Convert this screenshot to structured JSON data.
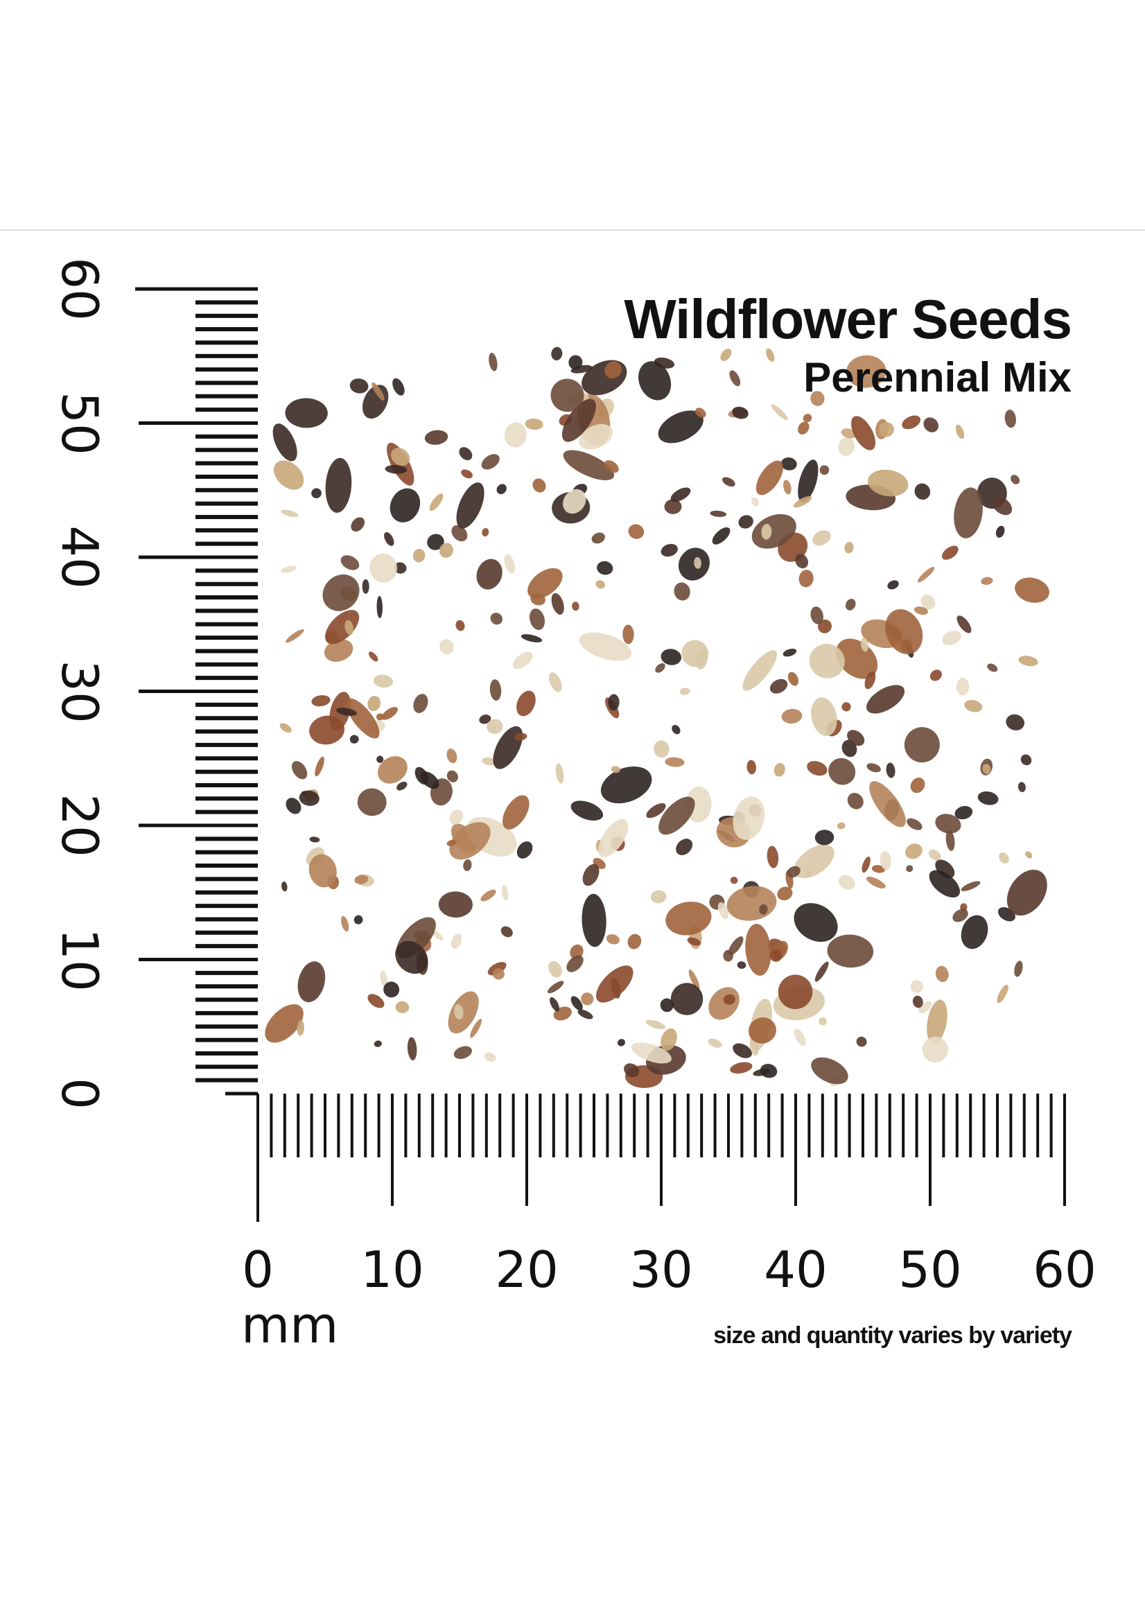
{
  "header": {
    "title": "Wildflower Seeds",
    "subtitle": "Perennial Mix"
  },
  "ruler": {
    "unit": "mm",
    "x_labels": [
      "0",
      "10",
      "20",
      "30",
      "40",
      "50",
      "60"
    ],
    "y_labels": [
      "0",
      "10",
      "20",
      "30",
      "40",
      "50",
      "60"
    ],
    "range_mm": [
      0,
      60
    ]
  },
  "footnote": "size and quantity varies by variety",
  "colors": {
    "ink": "#111111",
    "divider": "#dedad5",
    "seed_tones": [
      "#8a4a2e",
      "#5a3a2e",
      "#3b2a26",
      "#a0643c",
      "#c9a77a",
      "#e8dcc4",
      "#6b4b3a",
      "#b5835a",
      "#2e2424",
      "#d9c9a8"
    ]
  }
}
